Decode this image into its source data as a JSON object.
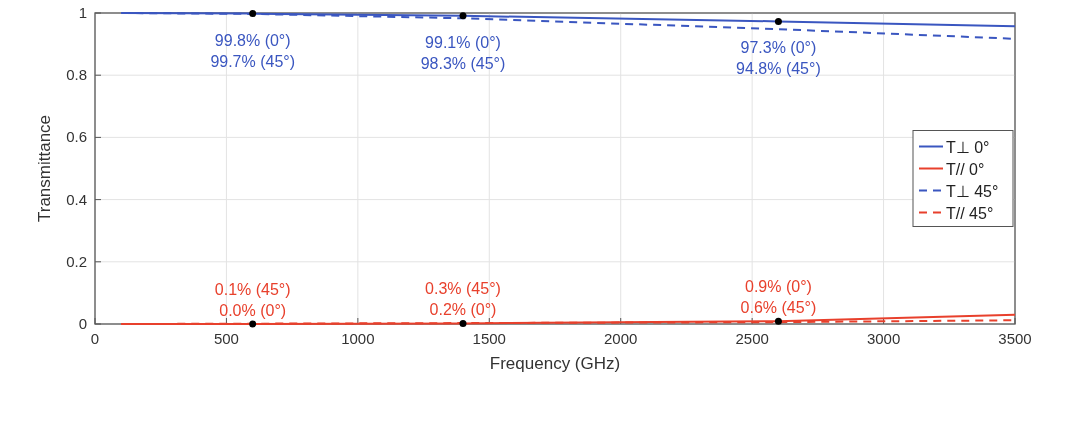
{
  "chart_data": {
    "type": "line",
    "xlabel": "Frequency (GHz)",
    "ylabel": "Transmittance",
    "xlim": [
      0,
      3500
    ],
    "ylim": [
      0,
      1
    ],
    "xticks": [
      0,
      500,
      1000,
      1500,
      2000,
      2500,
      3000,
      3500
    ],
    "yticks": [
      0,
      {
        "value": 0.2,
        "label": "0.2"
      },
      {
        "value": 0.4,
        "label": "0.4"
      },
      {
        "value": 0.6,
        "label": "0.6"
      },
      {
        "value": 0.8,
        "label": "0.8"
      },
      1
    ],
    "grid": true,
    "legend": "right",
    "x": [
      100,
      600,
      1400,
      2600,
      3500
    ],
    "series": [
      {
        "name": "T⊥ 0°",
        "color": "#3a56c0",
        "line_style": "solid",
        "values": [
          1.0,
          0.998,
          0.991,
          0.973,
          0.957
        ]
      },
      {
        "name": "T// 0°",
        "color": "#e8402c",
        "line_style": "solid",
        "values": [
          0.0,
          0.0,
          0.002,
          0.009,
          0.03
        ]
      },
      {
        "name": "T⊥ 45°",
        "color": "#3a56c0",
        "line_style": "dashed",
        "values": [
          1.0,
          0.997,
          0.983,
          0.948,
          0.917
        ]
      },
      {
        "name": "T// 45°",
        "color": "#e8402c",
        "line_style": "dashed",
        "values": [
          0.0,
          0.001,
          0.003,
          0.006,
          0.012
        ]
      }
    ],
    "annotations": [
      {
        "text": "99.8% (0°)\n99.7% (45°)",
        "x": 600,
        "y": 0.998
      },
      {
        "text": "99.1% (0°)\n98.3% (45°)",
        "x": 1400,
        "y": 0.991
      },
      {
        "text": "97.3% (0°)\n94.8% (45°)",
        "x": 2600,
        "y": 0.973
      },
      {
        "text": "0.1% (45°)\n0.0% (0°)",
        "x": 600,
        "y": 0.0
      },
      {
        "text": "0.3% (45°)\n0.2% (0°)",
        "x": 1400,
        "y": 0.002
      },
      {
        "text": "0.9% (0°)\n0.6% (45°)",
        "x": 2600,
        "y": 0.009
      }
    ]
  }
}
